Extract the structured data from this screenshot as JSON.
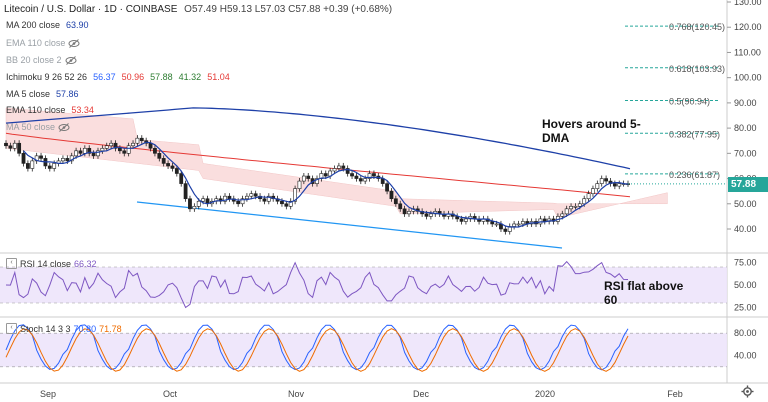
{
  "header": {
    "symbol": "Litecoin / U.S. Dollar · 1D · COINBASE",
    "ohlc": "O57.49 H59.13 L57.03 C57.88 +0.39 (+0.68%)"
  },
  "legend": [
    {
      "label": "MA 200 close",
      "value": "63.90",
      "color": "#1e40a8",
      "hidden": false
    },
    {
      "label": "EMA 110 close",
      "value": "",
      "color": "#9aa0a6",
      "hidden": true
    },
    {
      "label": "BB 20 close 2",
      "value": "",
      "color": "#9aa0a6",
      "hidden": true
    },
    {
      "label": "Ichimoku 9 26 52 26",
      "value": "",
      "color": "#333",
      "hidden": false
    },
    {
      "label": "MA 5 close",
      "value": "57.86",
      "color": "#1e40a8",
      "hidden": false
    },
    {
      "label": "EMA 110 close",
      "value": "53.34",
      "color": "#e53935",
      "hidden": false
    },
    {
      "label": "MA 50 close",
      "value": "",
      "color": "#9aa0a6",
      "hidden": true
    }
  ],
  "ichimoku_values": [
    {
      "v": "56.37",
      "color": "#2962ff"
    },
    {
      "v": "50.96",
      "color": "#e53935"
    },
    {
      "v": "57.88",
      "color": "#2e7d32"
    },
    {
      "v": "41.32",
      "color": "#2e7d32"
    },
    {
      "v": "51.04",
      "color": "#e53935"
    }
  ],
  "annotations": {
    "main": "Hovers around 5-DMA",
    "rsi": "RSI flat above 60"
  },
  "rsi_legend": {
    "label": "RSI 14 close",
    "value": "66.32"
  },
  "stoch_legend": {
    "label": "Stoch 14 3 3",
    "k": "70.80",
    "d": "71.78"
  },
  "last_price": "57.88",
  "colors": {
    "up": "#26a69a",
    "down": "#ef5350",
    "ma200": "#1e40a8",
    "ema110": "#e53935",
    "ma5": "#1e40a8",
    "fib": "#26a69a",
    "trend": "#2196f3",
    "rsi": "#7e57c2",
    "stochK": "#2962ff",
    "stochD": "#ef6c00"
  },
  "chart_data": {
    "type": "candlestick",
    "price_axis": {
      "min": 30,
      "max": 130,
      "ticks": [
        130,
        120,
        110,
        100,
        90,
        80,
        70,
        60,
        50,
        40
      ]
    },
    "x_labels": [
      "Sep",
      "Oct",
      "Nov",
      "Dec",
      "2020",
      "Feb"
    ],
    "fib_levels": [
      {
        "ratio": "0.768",
        "price": 120.45,
        "label": "0.768(120.45)"
      },
      {
        "ratio": "0.618",
        "price": 103.93,
        "label": "0.618(103.93)"
      },
      {
        "ratio": "0.5",
        "price": 90.94,
        "label": "0.5(90.94)"
      },
      {
        "ratio": "0.382",
        "price": 77.95,
        "label": "0.382(77.95)"
      },
      {
        "ratio": "0.236",
        "price": 61.87,
        "label": "0.236(61.87)"
      }
    ],
    "close": [
      73,
      72,
      74,
      70,
      66,
      64,
      67,
      69,
      68,
      65,
      64,
      66,
      67,
      68,
      67,
      69,
      71,
      70,
      72,
      70,
      69,
      71,
      72,
      73,
      74,
      72,
      71,
      70,
      73,
      74,
      76,
      75,
      74,
      72,
      70,
      68,
      66,
      65,
      64,
      62,
      58,
      52,
      48,
      49,
      51,
      52,
      50,
      51,
      52,
      51,
      53,
      52,
      51,
      50,
      52,
      53,
      54,
      53,
      52,
      51,
      53,
      52,
      51,
      50,
      49,
      51,
      56,
      59,
      61,
      60,
      58,
      60,
      62,
      61,
      63,
      64,
      65,
      64,
      62,
      61,
      60,
      59,
      60,
      62,
      61,
      60,
      58,
      55,
      52,
      50,
      48,
      46,
      47,
      48,
      47,
      46,
      45,
      46,
      47,
      46,
      45,
      46,
      45,
      44,
      43,
      44,
      45,
      44,
      43,
      44,
      43,
      42,
      42,
      40,
      39,
      41,
      42,
      42,
      43,
      42,
      43,
      42,
      44,
      43,
      44,
      43,
      45,
      46,
      48,
      49,
      49,
      50,
      52,
      54,
      56,
      58,
      60,
      59,
      58,
      57,
      58,
      58,
      57.88
    ],
    "ma200": {
      "start": 82,
      "mid": 88,
      "end": 63.9
    },
    "ema110_end": 53.34,
    "ma5_end": 57.86,
    "rsi": {
      "ticks": [
        75,
        50,
        25
      ],
      "last": 66.32,
      "bands": [
        70,
        30
      ]
    },
    "stoch": {
      "ticks": [
        80,
        40
      ],
      "k_last": 70.8,
      "d_last": 71.78,
      "bands": [
        80,
        20
      ]
    }
  }
}
